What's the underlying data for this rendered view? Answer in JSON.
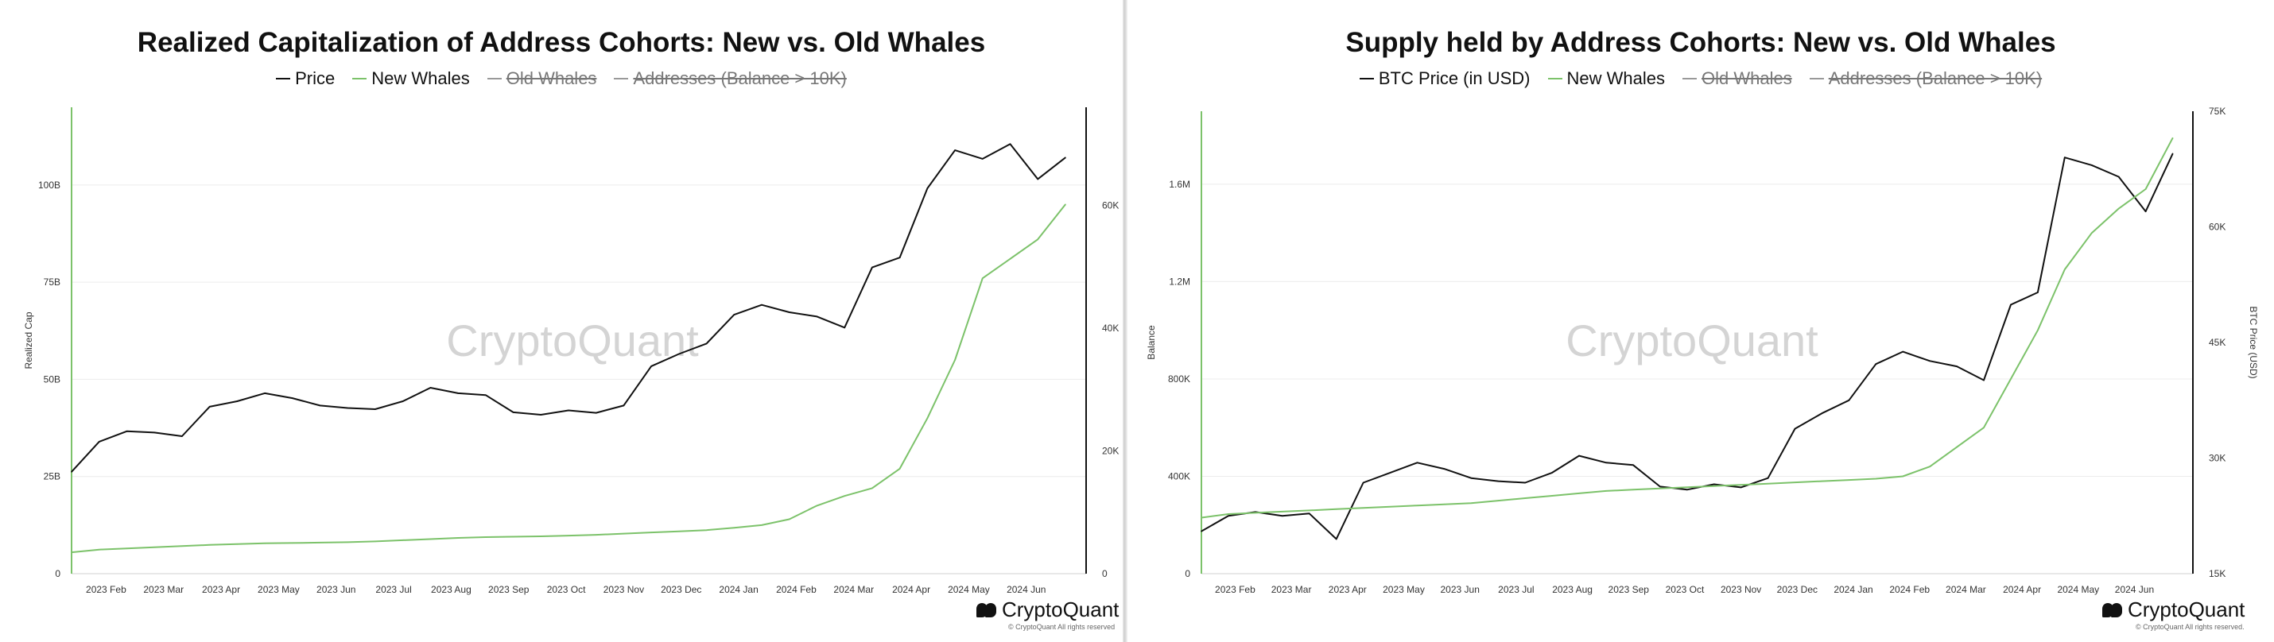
{
  "panels": [
    {
      "title": "Realized Capitalization of Address Cohorts: New vs. Old Whales",
      "legend": [
        {
          "label": "Price",
          "color": "#111111",
          "hidden": false
        },
        {
          "label": "New Whales",
          "color": "#7cc26a",
          "hidden": false
        },
        {
          "label": "Old Whales",
          "color": "#999999",
          "hidden": true
        },
        {
          "label": "Addresses (Balance > 10K)",
          "color": "#999999",
          "hidden": true
        }
      ],
      "watermark": "CryptoQuant",
      "brand": "CryptoQuant",
      "copyright": "© CryptoQuant All rights reserved"
    },
    {
      "title": "Supply held by Address Cohorts: New vs. Old Whales",
      "legend": [
        {
          "label": "BTC Price (in USD)",
          "color": "#111111",
          "hidden": false
        },
        {
          "label": "New Whales",
          "color": "#7cc26a",
          "hidden": false
        },
        {
          "label": "Old Whales",
          "color": "#999999",
          "hidden": true
        },
        {
          "label": "Addresses (Balance > 10K)",
          "color": "#999999",
          "hidden": true
        }
      ],
      "watermark": "CryptoQuant",
      "brand": "CryptoQuant",
      "copyright": "© CryptoQuant All rights reserved."
    }
  ],
  "chart_data": [
    {
      "type": "line",
      "title": "Realized Capitalization of Address Cohorts: New vs. Old Whales",
      "xlabel": "",
      "ylabel": "Realized Cap",
      "y2label": "",
      "x_ticks": [
        "2023 Feb",
        "2023 Mar",
        "2023 Apr",
        "2023 May",
        "2023 Jun",
        "2023 Jul",
        "2023 Aug",
        "2023 Sep",
        "2023 Oct",
        "2023 Nov",
        "2023 Dec",
        "2024 Jan",
        "2024 Feb",
        "2024 Mar",
        "2024 Apr",
        "2024 May",
        "2024 Jun"
      ],
      "y_ticks": [
        "0",
        "25B",
        "50B",
        "75B",
        "100B"
      ],
      "y2_ticks": [
        "0",
        "20K",
        "40K",
        "60K"
      ],
      "ylim": [
        0,
        120
      ],
      "y2lim": [
        0,
        76000
      ],
      "grid": true,
      "legend_position": "top",
      "series": [
        {
          "name": "Price",
          "axis": "right",
          "color": "#111111",
          "x": [
            2023.0,
            2023.04,
            2023.08,
            2023.12,
            2023.16,
            2023.2,
            2023.24,
            2023.28,
            2023.32,
            2023.36,
            2023.4,
            2023.44,
            2023.48,
            2023.52,
            2023.56,
            2023.6,
            2023.64,
            2023.68,
            2023.72,
            2023.76,
            2023.8,
            2023.84,
            2023.88,
            2023.92,
            2023.96,
            2024.0,
            2024.04,
            2024.08,
            2024.12,
            2024.16,
            2024.2,
            2024.24,
            2024.28,
            2024.32,
            2024.36,
            2024.4,
            2024.44
          ],
          "values": [
            16600,
            21500,
            23200,
            23000,
            22400,
            27200,
            28100,
            29400,
            28600,
            27400,
            27000,
            26800,
            28100,
            30300,
            29400,
            29100,
            26300,
            25900,
            26600,
            26200,
            27400,
            33800,
            35800,
            37500,
            42200,
            43800,
            42600,
            41900,
            40100,
            49900,
            51500,
            62800,
            69000,
            67600,
            70000,
            64300,
            67800
          ]
        },
        {
          "name": "New Whales",
          "axis": "left",
          "color": "#7cc26a",
          "x": [
            2023.0,
            2023.04,
            2023.08,
            2023.12,
            2023.16,
            2023.2,
            2023.24,
            2023.28,
            2023.32,
            2023.36,
            2023.4,
            2023.44,
            2023.48,
            2023.52,
            2023.56,
            2023.6,
            2023.64,
            2023.68,
            2023.72,
            2023.76,
            2023.8,
            2023.84,
            2023.88,
            2023.92,
            2023.96,
            2024.0,
            2024.04,
            2024.08,
            2024.12,
            2024.16,
            2024.2,
            2024.24,
            2024.28,
            2024.32,
            2024.36,
            2024.4,
            2024.44
          ],
          "values": [
            5.5,
            6.2,
            6.5,
            6.8,
            7.1,
            7.4,
            7.6,
            7.8,
            7.9,
            8.0,
            8.1,
            8.3,
            8.6,
            8.9,
            9.2,
            9.4,
            9.5,
            9.6,
            9.8,
            10.0,
            10.3,
            10.6,
            10.9,
            11.2,
            11.8,
            12.5,
            14.0,
            17.5,
            20.0,
            22.0,
            27.0,
            40.0,
            55.0,
            76.0,
            81.0,
            86.0,
            95.0
          ]
        }
      ]
    },
    {
      "type": "line",
      "title": "Supply held by Address Cohorts: New vs. Old Whales",
      "xlabel": "",
      "ylabel": "Balance",
      "y2label": "BTC Price (USD)",
      "x_ticks": [
        "2023 Feb",
        "2023 Mar",
        "2023 Apr",
        "2023 May",
        "2023 Jun",
        "2023 Jul",
        "2023 Aug",
        "2023 Sep",
        "2023 Oct",
        "2023 Nov",
        "2023 Dec",
        "2024 Jan",
        "2024 Feb",
        "2024 Mar",
        "2024 Apr",
        "2024 May",
        "2024 Jun"
      ],
      "y_ticks": [
        "0",
        "400K",
        "800K",
        "1.2M",
        "1.6M"
      ],
      "y2_ticks": [
        "15K",
        "30K",
        "45K",
        "60K",
        "75K"
      ],
      "ylim": [
        0,
        1900000
      ],
      "y2lim": [
        15000,
        75000
      ],
      "grid": true,
      "legend_position": "top",
      "series": [
        {
          "name": "BTC Price (in USD)",
          "axis": "right",
          "color": "#111111",
          "x": [
            2023.0,
            2023.04,
            2023.08,
            2023.12,
            2023.16,
            2023.2,
            2023.24,
            2023.28,
            2023.32,
            2023.36,
            2023.4,
            2023.44,
            2023.48,
            2023.52,
            2023.56,
            2023.6,
            2023.64,
            2023.68,
            2023.72,
            2023.76,
            2023.8,
            2023.84,
            2023.88,
            2023.92,
            2023.96,
            2024.0,
            2024.04,
            2024.08,
            2024.12,
            2024.16,
            2024.2,
            2024.24,
            2024.28,
            2024.32,
            2024.36,
            2024.4,
            2024.44
          ],
          "values": [
            20500,
            22500,
            23000,
            22500,
            22800,
            19500,
            26800,
            28100,
            29400,
            28600,
            27400,
            27000,
            26800,
            28100,
            30300,
            29400,
            29100,
            26300,
            25900,
            26600,
            26200,
            27400,
            33800,
            35800,
            37500,
            42200,
            43800,
            42600,
            41900,
            40100,
            49900,
            51500,
            69000,
            68000,
            66500,
            62000,
            69500
          ]
        },
        {
          "name": "New Whales",
          "axis": "left",
          "color": "#7cc26a",
          "x": [
            2023.0,
            2023.04,
            2023.08,
            2023.12,
            2023.16,
            2023.2,
            2023.24,
            2023.28,
            2023.32,
            2023.36,
            2023.4,
            2023.44,
            2023.48,
            2023.52,
            2023.56,
            2023.6,
            2023.64,
            2023.68,
            2023.72,
            2023.76,
            2023.8,
            2023.84,
            2023.88,
            2023.92,
            2023.96,
            2024.0,
            2024.04,
            2024.08,
            2024.12,
            2024.16,
            2024.2,
            2024.24,
            2024.28,
            2024.32,
            2024.36,
            2024.4,
            2024.44
          ],
          "values": [
            230000,
            245000,
            250000,
            255000,
            260000,
            265000,
            270000,
            275000,
            280000,
            285000,
            290000,
            300000,
            310000,
            320000,
            330000,
            340000,
            345000,
            350000,
            355000,
            360000,
            365000,
            370000,
            375000,
            380000,
            385000,
            390000,
            400000,
            440000,
            520000,
            600000,
            800000,
            1000000,
            1250000,
            1400000,
            1500000,
            1580000,
            1790000
          ]
        }
      ]
    }
  ]
}
